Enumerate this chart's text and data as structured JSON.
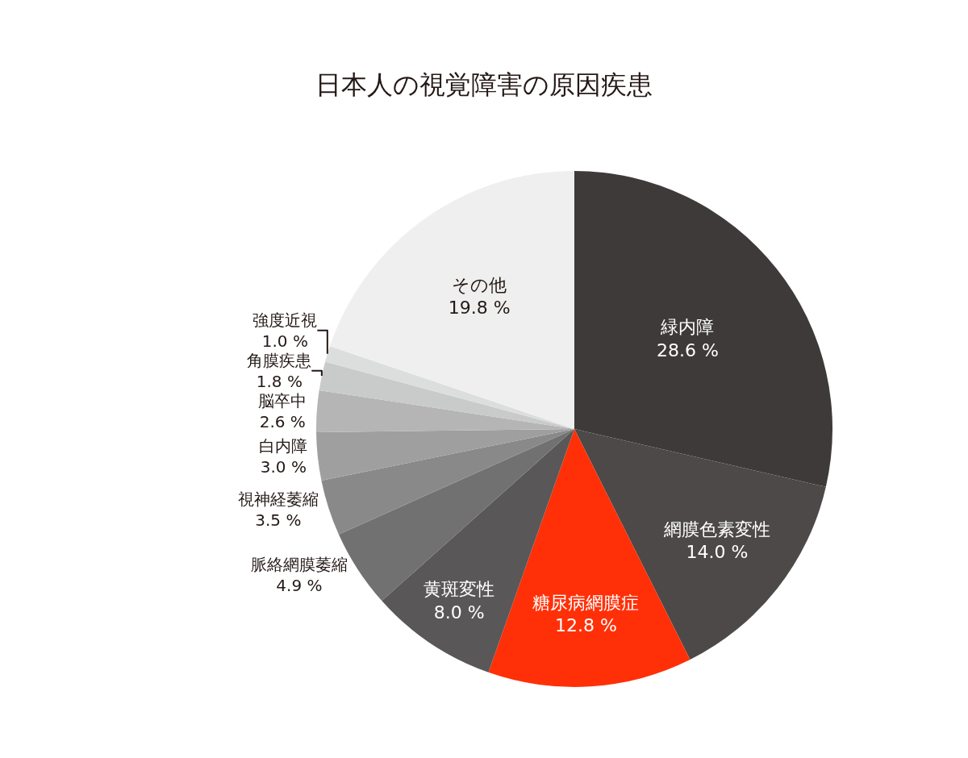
{
  "chart_data": {
    "type": "pie",
    "title": "日本人の視覚障害の原因疾患",
    "categories": [
      "緑内障",
      "網膜色素変性",
      "糖尿病網膜症",
      "黄斑変性",
      "脈絡網膜萎縮",
      "視神経萎縮",
      "白内障",
      "脳卒中",
      "角膜疾患",
      "強度近視",
      "その他"
    ],
    "values": [
      28.6,
      14.0,
      12.8,
      8.0,
      4.9,
      3.5,
      3.0,
      2.6,
      1.8,
      1.0,
      19.8
    ],
    "value_labels": [
      "28.6 %",
      "14.0 %",
      "12.8 %",
      "8.0 %",
      "4.9 %",
      "3.5 %",
      "3.0 %",
      "2.6 %",
      "1.8 %",
      "1.0 %",
      "19.8 %"
    ],
    "colors": [
      "#3e3a39",
      "#4d4948",
      "#ff3008",
      "#595757",
      "#727171",
      "#898989",
      "#9f9f9f",
      "#b5b5b5",
      "#c9caca",
      "#dcdddd",
      "#efefef"
    ],
    "legend": false
  }
}
